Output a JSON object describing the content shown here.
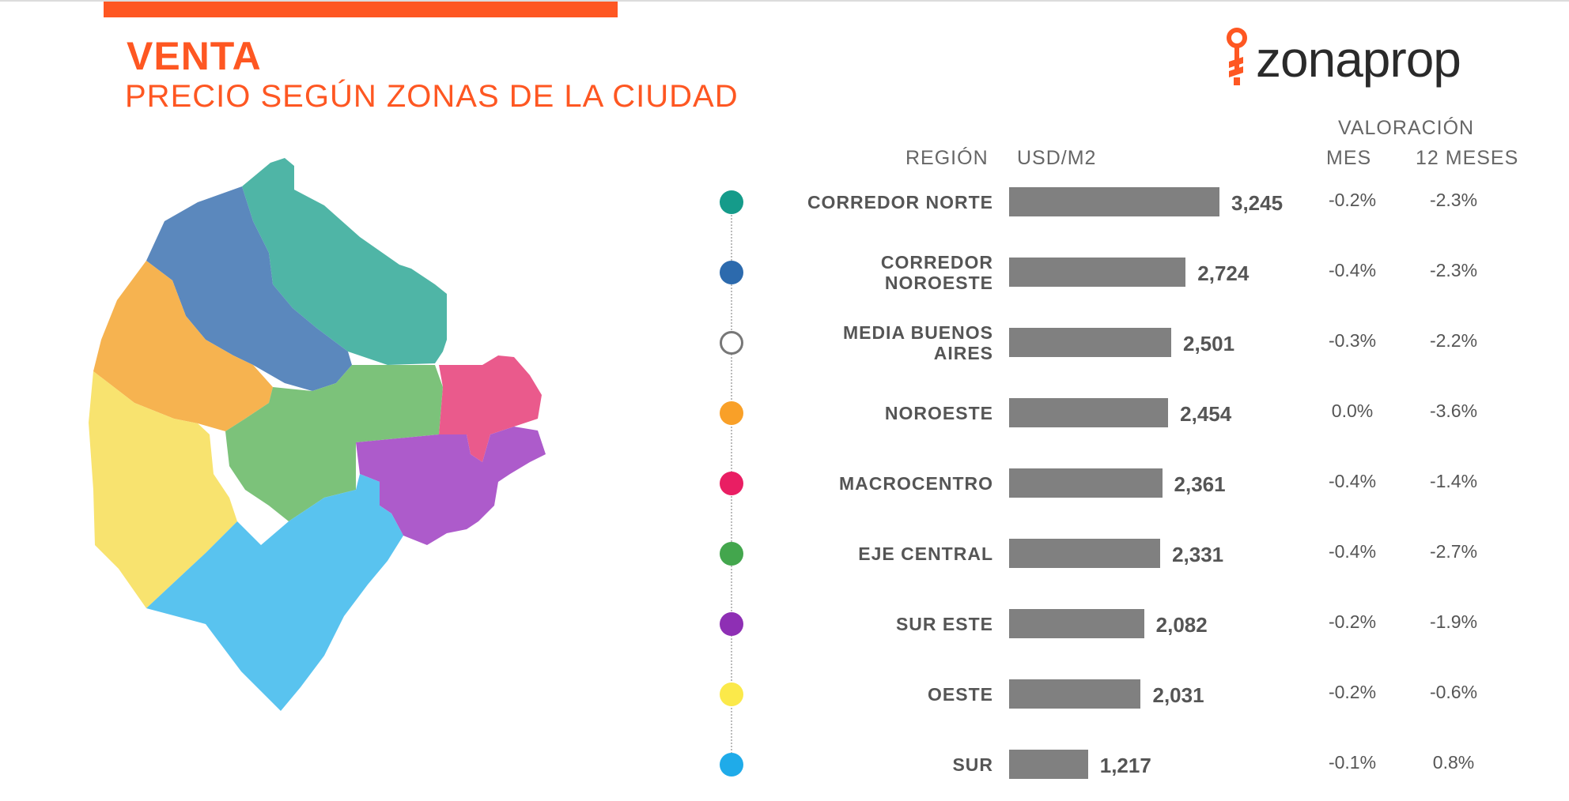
{
  "header": {
    "title": "VENTA",
    "subtitle": "PRECIO SEGÚN ZONAS DE LA CIUDAD"
  },
  "logo": {
    "text": "zonaprop",
    "color": "#fe5722"
  },
  "table_headers": {
    "region": "REGIÓN",
    "usd_m2": "USD/M2",
    "valoracion": "VALORACIÓN",
    "mes": "MES",
    "doce_meses": "12 MESES"
  },
  "chart_data": {
    "type": "bar",
    "orientation": "horizontal",
    "title": "PRECIO SEGÚN ZONAS DE LA CIUDAD",
    "xlabel": "USD/M2",
    "categories": [
      "CORREDOR NORTE",
      "CORREDOR NOROESTE",
      "MEDIA BUENOS AIRES",
      "NOROESTE",
      "MACROCENTRO",
      "EJE CENTRAL",
      "SUR ESTE",
      "OESTE",
      "SUR"
    ],
    "values": [
      3245,
      2724,
      2501,
      2454,
      2361,
      2331,
      2082,
      2031,
      1217
    ],
    "value_labels": [
      "3,245",
      "2,724",
      "2,501",
      "2,454",
      "2,361",
      "2,331",
      "2,082",
      "2,031",
      "1,217"
    ],
    "label_lines": [
      [
        "CORREDOR NORTE"
      ],
      [
        "CORREDOR",
        "NOROESTE"
      ],
      [
        "MEDIA BUENOS",
        "AIRES"
      ],
      [
        "NOROESTE"
      ],
      [
        "MACROCENTRO"
      ],
      [
        "EJE CENTRAL"
      ],
      [
        "SUR ESTE"
      ],
      [
        "OESTE"
      ],
      [
        "SUR"
      ]
    ],
    "mes": [
      "-0.2%",
      "-0.4%",
      "-0.3%",
      "0.0%",
      "-0.4%",
      "-0.4%",
      "-0.2%",
      "-0.2%",
      "-0.1%"
    ],
    "doce_meses": [
      "-2.3%",
      "-2.3%",
      "-2.2%",
      "-3.6%",
      "-1.4%",
      "-2.7%",
      "-1.9%",
      "-0.6%",
      "0.8%"
    ],
    "zone_colors": [
      "#159b8a",
      "#2c6aad",
      "#ffffff",
      "#f9a028",
      "#e91e63",
      "#43a64d",
      "#8e2fb4",
      "#fbe94a",
      "#1fabe9"
    ],
    "bar_color": "#808080",
    "xlim": [
      0,
      3245
    ]
  }
}
